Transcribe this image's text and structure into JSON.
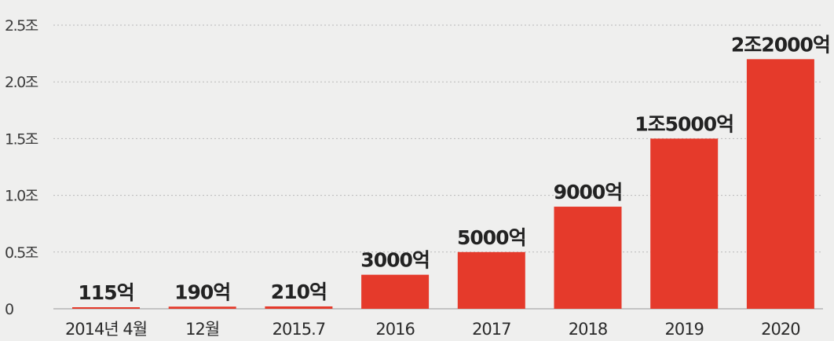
{
  "chart_data": {
    "type": "bar",
    "categories": [
      "2014년 4월",
      "12월",
      "2015.7",
      "2016",
      "2017",
      "2018",
      "2019",
      "2020"
    ],
    "values": [
      115,
      190,
      210,
      3000,
      5000,
      9000,
      15000,
      22000
    ],
    "data_labels": [
      "115억",
      "190억",
      "210억",
      "3000억",
      "5000억",
      "9000억",
      "1조5000억",
      "2조2000억"
    ],
    "y_ticks": [
      {
        "value": 0,
        "label": "0"
      },
      {
        "value": 5000,
        "label": "0.5조"
      },
      {
        "value": 10000,
        "label": "1.0조"
      },
      {
        "value": 15000,
        "label": "1.5조"
      },
      {
        "value": 20000,
        "label": "2.0조"
      },
      {
        "value": 25000,
        "label": "2.5조"
      }
    ],
    "ylim": [
      0,
      25000
    ],
    "grid": true,
    "legend": "none",
    "bar_color": "#e53a2b",
    "grid_color": "#b9b9b9",
    "background_color": "#efefee"
  }
}
